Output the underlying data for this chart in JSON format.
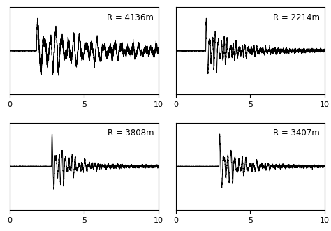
{
  "labels": [
    "R = 4136m",
    "R = 2214m",
    "R = 3808m",
    "R = 3407m"
  ],
  "xlim": [
    0,
    10
  ],
  "xticks": [
    0,
    5,
    10
  ],
  "background_color": "#ffffff",
  "line_color": "#000000",
  "line_width": 0.7,
  "label_fontsize": 8.5,
  "arrival_times": [
    1.8,
    2.0,
    2.8,
    2.9
  ],
  "main_freq": [
    2.5,
    5.0,
    4.5,
    4.0
  ],
  "decay": [
    0.25,
    0.7,
    0.9,
    0.85
  ],
  "amplitude": [
    1.0,
    1.0,
    1.0,
    1.0
  ],
  "noise_after_decay": [
    0.12,
    0.06,
    0.04,
    0.04
  ],
  "noise_before": [
    0.005,
    0.005,
    0.005,
    0.005
  ],
  "seeds": [
    1,
    2,
    3,
    4
  ]
}
